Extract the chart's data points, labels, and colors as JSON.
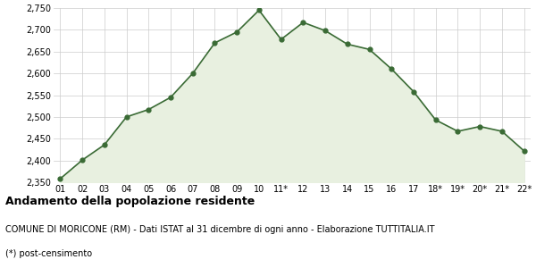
{
  "x_labels": [
    "01",
    "02",
    "03",
    "04",
    "05",
    "06",
    "07",
    "08",
    "09",
    "10",
    "11*",
    "12",
    "13",
    "14",
    "15",
    "16",
    "17",
    "18*",
    "19*",
    "20*",
    "21*",
    "22*"
  ],
  "y_values": [
    2358,
    2401,
    2436,
    2500,
    2517,
    2545,
    2600,
    2670,
    2695,
    2745,
    2678,
    2717,
    2698,
    2667,
    2655,
    2610,
    2558,
    2493,
    2467,
    2478,
    2467,
    2422
  ],
  "line_color": "#3a6b35",
  "fill_color": "#e8f0e0",
  "marker_color": "#3a6b35",
  "background_color": "#ffffff",
  "grid_color": "#cccccc",
  "ylim_min": 2350,
  "ylim_max": 2750,
  "ytick_step": 50,
  "title": "Andamento della popolazione residente",
  "subtitle": "COMUNE DI MORICONE (RM) - Dati ISTAT al 31 dicembre di ogni anno - Elaborazione TUTTITALIA.IT",
  "footnote": "(*) post-censimento",
  "title_fontsize": 9,
  "subtitle_fontsize": 7,
  "footnote_fontsize": 7,
  "tick_fontsize": 7,
  "ytick_fontsize": 7
}
